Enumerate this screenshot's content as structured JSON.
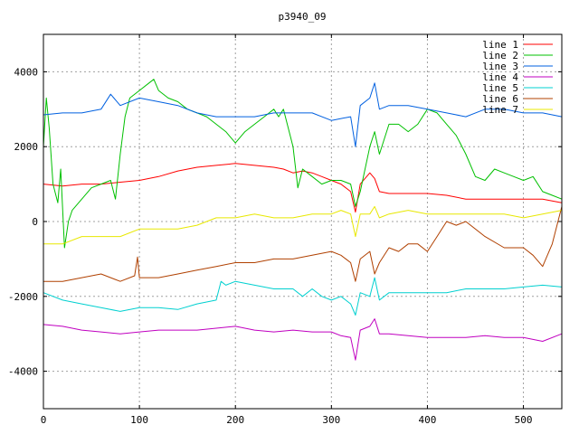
{
  "chart_data": {
    "type": "line",
    "title": "p3940_09",
    "xlabel": "",
    "ylabel": "",
    "xlim": [
      0,
      540
    ],
    "ylim": [
      -5000,
      5000
    ],
    "xticks": [
      0,
      100,
      200,
      300,
      400,
      500
    ],
    "yticks": [
      -4000,
      -2000,
      0,
      2000,
      4000
    ],
    "grid": true,
    "legend_position": "top-right",
    "series": [
      {
        "name": "line 1",
        "color": "#ff0000",
        "x": [
          0,
          20,
          40,
          60,
          80,
          100,
          120,
          140,
          160,
          180,
          200,
          220,
          240,
          250,
          260,
          270,
          280,
          290,
          300,
          310,
          320,
          325,
          330,
          340,
          345,
          350,
          360,
          380,
          400,
          420,
          440,
          460,
          480,
          500,
          520,
          540
        ],
        "y": [
          1000,
          950,
          1000,
          1000,
          1050,
          1100,
          1200,
          1350,
          1450,
          1500,
          1550,
          1500,
          1450,
          1400,
          1300,
          1350,
          1300,
          1200,
          1100,
          1000,
          800,
          250,
          1000,
          1300,
          1150,
          800,
          750,
          750,
          750,
          700,
          600,
          600,
          600,
          600,
          600,
          500
        ]
      },
      {
        "name": "line 2",
        "color": "#00c000",
        "x": [
          0,
          3,
          6,
          10,
          15,
          18,
          22,
          26,
          30,
          40,
          50,
          60,
          70,
          75,
          80,
          85,
          90,
          100,
          110,
          115,
          120,
          130,
          140,
          150,
          160,
          170,
          180,
          190,
          200,
          210,
          220,
          230,
          240,
          245,
          250,
          255,
          260,
          265,
          270,
          280,
          290,
          300,
          310,
          320,
          325,
          330,
          340,
          345,
          350,
          360,
          370,
          380,
          390,
          400,
          410,
          420,
          430,
          440,
          450,
          460,
          470,
          480,
          490,
          500,
          510,
          520,
          530,
          540
        ],
        "y": [
          2000,
          3300,
          2500,
          1000,
          500,
          1400,
          -700,
          0,
          300,
          600,
          900,
          1000,
          1100,
          600,
          1800,
          2800,
          3300,
          3500,
          3700,
          3800,
          3500,
          3300,
          3200,
          3000,
          2900,
          2800,
          2600,
          2400,
          2100,
          2400,
          2600,
          2800,
          3000,
          2800,
          3000,
          2500,
          2000,
          900,
          1400,
          1200,
          1000,
          1100,
          1100,
          1000,
          400,
          800,
          2000,
          2400,
          1800,
          2600,
          2600,
          2400,
          2600,
          3000,
          2900,
          2600,
          2300,
          1800,
          1200,
          1100,
          1400,
          1300,
          1200,
          1100,
          1200,
          800,
          700,
          600
        ]
      },
      {
        "name": "line 3",
        "color": "#0060e0",
        "x": [
          0,
          20,
          40,
          60,
          70,
          80,
          100,
          120,
          140,
          160,
          180,
          200,
          220,
          240,
          260,
          280,
          300,
          320,
          325,
          330,
          340,
          345,
          350,
          360,
          380,
          400,
          420,
          440,
          460,
          480,
          500,
          520,
          540
        ],
        "y": [
          2850,
          2900,
          2900,
          3000,
          3400,
          3100,
          3300,
          3200,
          3100,
          2900,
          2800,
          2800,
          2800,
          2900,
          2900,
          2900,
          2700,
          2800,
          2000,
          3100,
          3300,
          3700,
          3000,
          3100,
          3100,
          3000,
          2900,
          2800,
          3000,
          3000,
          2900,
          2900,
          2800
        ]
      },
      {
        "name": "line 4",
        "color": "#c000c0",
        "x": [
          0,
          20,
          40,
          60,
          80,
          100,
          120,
          140,
          160,
          180,
          200,
          220,
          240,
          260,
          280,
          300,
          310,
          320,
          325,
          330,
          340,
          345,
          350,
          360,
          380,
          400,
          420,
          440,
          460,
          480,
          500,
          520,
          540
        ],
        "y": [
          -2750,
          -2800,
          -2900,
          -2950,
          -3000,
          -2950,
          -2900,
          -2900,
          -2900,
          -2850,
          -2800,
          -2900,
          -2950,
          -2900,
          -2950,
          -2950,
          -3050,
          -3100,
          -3700,
          -2900,
          -2800,
          -2600,
          -3000,
          -3000,
          -3050,
          -3100,
          -3100,
          -3100,
          -3050,
          -3100,
          -3100,
          -3200,
          -3000
        ]
      },
      {
        "name": "line 5",
        "color": "#00d0d0",
        "x": [
          0,
          20,
          40,
          60,
          80,
          100,
          120,
          140,
          160,
          180,
          185,
          190,
          200,
          220,
          240,
          260,
          270,
          280,
          290,
          300,
          310,
          320,
          325,
          330,
          340,
          345,
          350,
          360,
          380,
          400,
          420,
          440,
          460,
          480,
          500,
          520,
          540
        ],
        "y": [
          -1900,
          -2100,
          -2200,
          -2300,
          -2400,
          -2300,
          -2300,
          -2350,
          -2200,
          -2100,
          -1600,
          -1700,
          -1600,
          -1700,
          -1800,
          -1800,
          -2000,
          -1800,
          -2000,
          -2100,
          -2000,
          -2200,
          -2500,
          -1900,
          -2000,
          -1500,
          -2100,
          -1900,
          -1900,
          -1900,
          -1900,
          -1800,
          -1800,
          -1800,
          -1750,
          -1700,
          -1750
        ]
      },
      {
        "name": "line 6",
        "color": "#b04000",
        "x": [
          0,
          20,
          40,
          60,
          80,
          95,
          98,
          100,
          120,
          140,
          160,
          180,
          200,
          220,
          240,
          260,
          280,
          300,
          310,
          320,
          325,
          330,
          340,
          345,
          350,
          360,
          370,
          380,
          390,
          400,
          410,
          420,
          430,
          440,
          460,
          480,
          500,
          510,
          520,
          530,
          540
        ],
        "y": [
          -1600,
          -1600,
          -1500,
          -1400,
          -1600,
          -1450,
          -950,
          -1500,
          -1500,
          -1400,
          -1300,
          -1200,
          -1100,
          -1100,
          -1000,
          -1000,
          -900,
          -800,
          -900,
          -1100,
          -1600,
          -1000,
          -800,
          -1400,
          -1100,
          -700,
          -800,
          -600,
          -600,
          -800,
          -400,
          0,
          -100,
          0,
          -400,
          -700,
          -700,
          -900,
          -1200,
          -600,
          400
        ]
      },
      {
        "name": "line 7",
        "color": "#e8e800",
        "x": [
          0,
          20,
          40,
          60,
          80,
          100,
          120,
          140,
          160,
          180,
          200,
          220,
          240,
          260,
          280,
          300,
          310,
          320,
          325,
          330,
          340,
          345,
          350,
          360,
          380,
          400,
          420,
          440,
          460,
          480,
          500,
          520,
          540
        ],
        "y": [
          -600,
          -600,
          -400,
          -400,
          -400,
          -200,
          -200,
          -200,
          -100,
          100,
          100,
          200,
          100,
          100,
          200,
          200,
          300,
          200,
          -400,
          200,
          200,
          400,
          100,
          200,
          300,
          200,
          200,
          200,
          200,
          200,
          100,
          200,
          300
        ]
      }
    ]
  }
}
